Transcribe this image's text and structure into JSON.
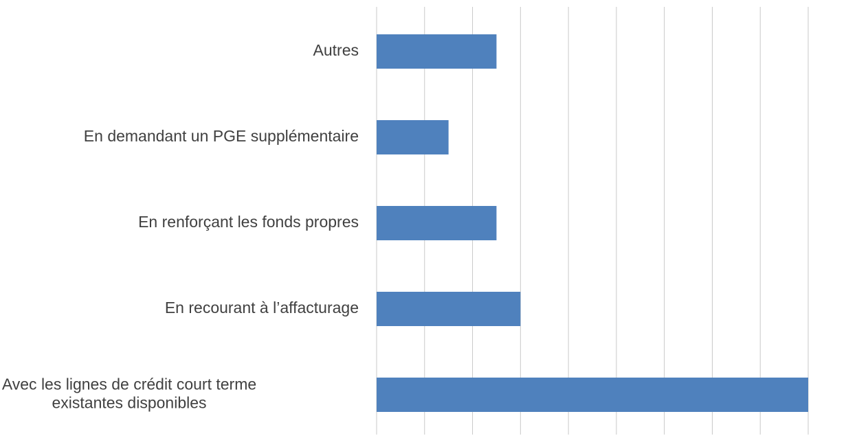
{
  "chart_data": {
    "type": "hbar",
    "categories": [
      "Autres",
      "En demandant un PGE supplémentaire",
      "En renforçant les fonds propres",
      "En recourant à l’affacturage",
      "Avec les lignes de crédit court terme\nexistantes disponibles"
    ],
    "values": [
      2.5,
      1.5,
      2.5,
      3,
      9
    ],
    "color": "#4f81bd",
    "xlim": [
      0,
      9
    ],
    "xticks": [
      0,
      1,
      2,
      3,
      4,
      5,
      6,
      7,
      8,
      9
    ],
    "grid": true
  }
}
